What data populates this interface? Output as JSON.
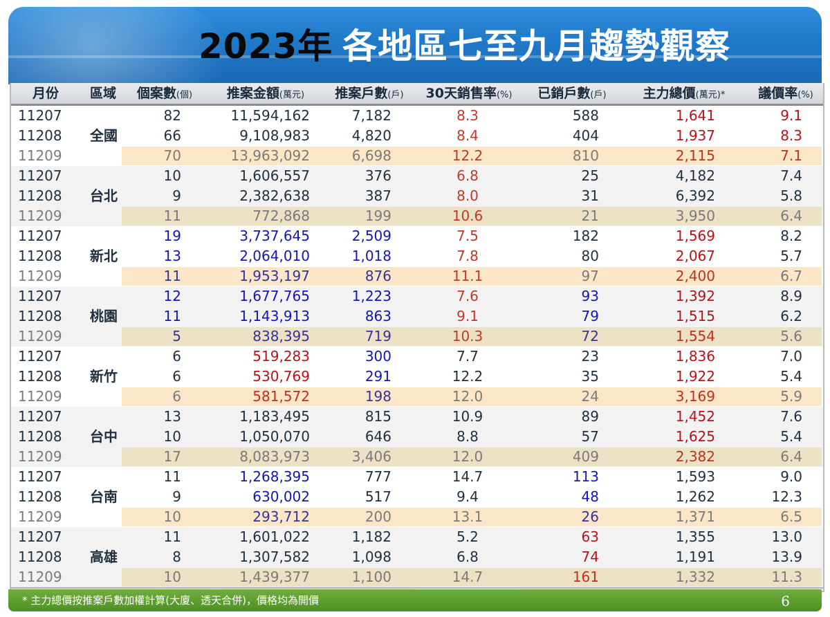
{
  "title": {
    "year": "2023年",
    "rest": "各地區七至九月趨勢觀察"
  },
  "headers": [
    {
      "label": "月份",
      "unit": ""
    },
    {
      "label": "區域",
      "unit": ""
    },
    {
      "label": "個案數",
      "unit": "(個)"
    },
    {
      "label": "推案金額",
      "unit": "(萬元)"
    },
    {
      "label": "推案戶數",
      "unit": "(戶)"
    },
    {
      "label": "30天銷售率",
      "unit": "(%)"
    },
    {
      "label": "已銷戶數",
      "unit": "(戶)"
    },
    {
      "label": "主力總價",
      "unit": "(萬元)*"
    },
    {
      "label": "議價率",
      "unit": "(%)"
    }
  ],
  "groups": [
    {
      "region": "全國",
      "rows": [
        {
          "month": "11207",
          "cases": "82",
          "amount": "11,594,162",
          "units": "7,182",
          "rate": "8.3",
          "sold": "588",
          "price": "1,641",
          "bargain": "9.1"
        },
        {
          "month": "11208",
          "cases": "66",
          "amount": "9,108,983",
          "units": "4,820",
          "rate": "8.4",
          "sold": "404",
          "price": "1,937",
          "bargain": "8.3"
        },
        {
          "month": "11209",
          "cases": "70",
          "amount": "13,963,092",
          "units": "6,698",
          "rate": "12.2",
          "sold": "810",
          "price": "2,115",
          "bargain": "7.1"
        }
      ]
    },
    {
      "region": "台北",
      "rows": [
        {
          "month": "11207",
          "cases": "10",
          "amount": "1,606,557",
          "units": "376",
          "rate": "6.8",
          "sold": "25",
          "price": "4,182",
          "bargain": "7.4"
        },
        {
          "month": "11208",
          "cases": "9",
          "amount": "2,382,638",
          "units": "387",
          "rate": "8.0",
          "sold": "31",
          "price": "6,392",
          "bargain": "5.8"
        },
        {
          "month": "11209",
          "cases": "11",
          "amount": "772,868",
          "units": "199",
          "rate": "10.6",
          "sold": "21",
          "price": "3,950",
          "bargain": "6.4"
        }
      ]
    },
    {
      "region": "新北",
      "rows": [
        {
          "month": "11207",
          "cases": "19",
          "amount": "3,737,645",
          "units": "2,509",
          "rate": "7.5",
          "sold": "182",
          "price": "1,569",
          "bargain": "8.2"
        },
        {
          "month": "11208",
          "cases": "13",
          "amount": "2,064,010",
          "units": "1,018",
          "rate": "7.8",
          "sold": "80",
          "price": "2,067",
          "bargain": "5.7"
        },
        {
          "month": "11209",
          "cases": "11",
          "amount": "1,953,197",
          "units": "876",
          "rate": "11.1",
          "sold": "97",
          "price": "2,400",
          "bargain": "6.7"
        }
      ]
    },
    {
      "region": "桃園",
      "rows": [
        {
          "month": "11207",
          "cases": "12",
          "amount": "1,677,765",
          "units": "1,223",
          "rate": "7.6",
          "sold": "93",
          "price": "1,392",
          "bargain": "8.9"
        },
        {
          "month": "11208",
          "cases": "11",
          "amount": "1,143,913",
          "units": "863",
          "rate": "9.1",
          "sold": "79",
          "price": "1,515",
          "bargain": "6.2"
        },
        {
          "month": "11209",
          "cases": "5",
          "amount": "838,395",
          "units": "719",
          "rate": "10.3",
          "sold": "72",
          "price": "1,554",
          "bargain": "5.6"
        }
      ]
    },
    {
      "region": "新竹",
      "rows": [
        {
          "month": "11207",
          "cases": "6",
          "amount": "519,283",
          "units": "300",
          "rate": "7.7",
          "sold": "23",
          "price": "1,836",
          "bargain": "7.0"
        },
        {
          "month": "11208",
          "cases": "6",
          "amount": "530,769",
          "units": "291",
          "rate": "12.2",
          "sold": "35",
          "price": "1,922",
          "bargain": "5.4"
        },
        {
          "month": "11209",
          "cases": "6",
          "amount": "581,572",
          "units": "198",
          "rate": "12.0",
          "sold": "24",
          "price": "3,169",
          "bargain": "5.9"
        }
      ]
    },
    {
      "region": "台中",
      "rows": [
        {
          "month": "11207",
          "cases": "13",
          "amount": "1,183,495",
          "units": "815",
          "rate": "10.9",
          "sold": "89",
          "price": "1,452",
          "bargain": "7.6"
        },
        {
          "month": "11208",
          "cases": "10",
          "amount": "1,050,070",
          "units": "646",
          "rate": "8.8",
          "sold": "57",
          "price": "1,625",
          "bargain": "5.4"
        },
        {
          "month": "11209",
          "cases": "17",
          "amount": "8,083,973",
          "units": "3,406",
          "rate": "12.0",
          "sold": "409",
          "price": "2,382",
          "bargain": "6.4"
        }
      ]
    },
    {
      "region": "台南",
      "rows": [
        {
          "month": "11207",
          "cases": "11",
          "amount": "1,268,395",
          "units": "777",
          "rate": "14.7",
          "sold": "113",
          "price": "1,593",
          "bargain": "9.0"
        },
        {
          "month": "11208",
          "cases": "9",
          "amount": "630,002",
          "units": "517",
          "rate": "9.4",
          "sold": "48",
          "price": "1,262",
          "bargain": "12.3"
        },
        {
          "month": "11209",
          "cases": "10",
          "amount": "293,712",
          "units": "200",
          "rate": "13.1",
          "sold": "26",
          "price": "1,371",
          "bargain": "6.5"
        }
      ]
    },
    {
      "region": "高雄",
      "rows": [
        {
          "month": "11207",
          "cases": "11",
          "amount": "1,601,022",
          "units": "1,182",
          "rate": "5.2",
          "sold": "63",
          "price": "1,355",
          "bargain": "13.0"
        },
        {
          "month": "11208",
          "cases": "8",
          "amount": "1,307,582",
          "units": "1,098",
          "rate": "6.8",
          "sold": "74",
          "price": "1,191",
          "bargain": "13.9"
        },
        {
          "month": "11209",
          "cases": "10",
          "amount": "1,439,377",
          "units": "1,100",
          "rate": "14.7",
          "sold": "161",
          "price": "1,332",
          "bargain": "11.3"
        }
      ]
    }
  ],
  "footer": {
    "note": "*  主力總價按推案戶數加權計算(大廈、透天合併)，價格均為開價",
    "page": "6"
  },
  "colors": {
    "header_blue": "#1f79c9",
    "footer_green": "#5a9a2c",
    "value_red": "#b5121b",
    "value_blue": "#1414b8",
    "highlight_col": "#fdf6d6",
    "sep_row": "#fbe7c7"
  }
}
